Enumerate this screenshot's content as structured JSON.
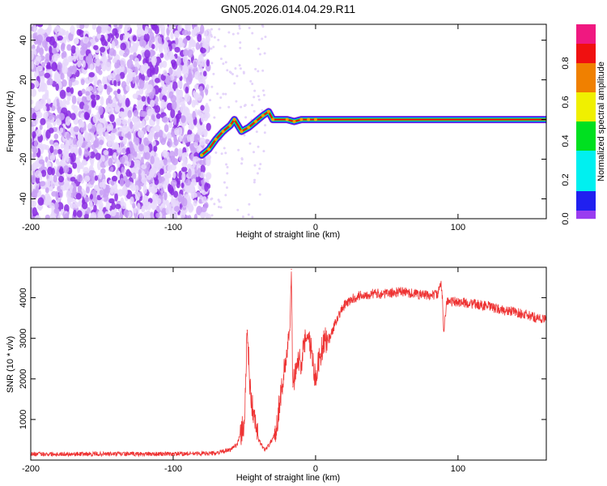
{
  "chart_data": [
    {
      "type": "heatmap",
      "title": "GN05.2026.014.04.29.R11",
      "xlabel": "Height of straight line (km)",
      "ylabel": "Frequency (Hz)",
      "xlim": [
        -200,
        162
      ],
      "ylim": [
        -50,
        48
      ],
      "xticks": [
        -200,
        -100,
        0,
        100
      ],
      "xtick_labels": [
        "-200",
        "-100",
        "0",
        "100"
      ],
      "yticks": [
        -40,
        -20,
        0,
        20,
        40
      ],
      "ytick_labels": [
        "-40",
        "-20",
        "0",
        "20",
        "40"
      ],
      "noise_region_km": [
        -200,
        -75
      ],
      "ridge": [
        [
          -80,
          -18
        ],
        [
          -75,
          -15
        ],
        [
          -70,
          -10
        ],
        [
          -65,
          -6
        ],
        [
          -60,
          -3
        ],
        [
          -57,
          0
        ],
        [
          -52,
          -6
        ],
        [
          -47,
          -4
        ],
        [
          -42,
          -1
        ],
        [
          -37,
          2
        ],
        [
          -33,
          4
        ],
        [
          -30,
          0
        ],
        [
          -20,
          0
        ],
        [
          -15,
          -1
        ],
        [
          -10,
          0
        ],
        [
          -5,
          0
        ],
        [
          0,
          0
        ],
        [
          162,
          0
        ]
      ],
      "colorbar": {
        "label": "Normalized spectral amplitude",
        "range": [
          0,
          1
        ],
        "ticks": [
          0.0,
          0.2,
          0.4,
          0.6,
          0.8
        ],
        "tick_labels": [
          "0.0",
          "0.2",
          "0.4",
          "0.6",
          "0.8"
        ]
      }
    },
    {
      "type": "line",
      "xlabel": "Height of straight line (km)",
      "ylabel": "SNR (10 * v/v)",
      "xlim": [
        -200,
        162
      ],
      "ylim": [
        0,
        4750
      ],
      "xticks": [
        -200,
        -100,
        0,
        100
      ],
      "xtick_labels": [
        "-200",
        "-100",
        "0",
        "100"
      ],
      "yticks": [
        1000,
        2000,
        3000,
        4000
      ],
      "ytick_labels": [
        "1000",
        "2000",
        "3000",
        "4000"
      ],
      "color": "#ee3333",
      "x": [
        -200,
        -150,
        -100,
        -70,
        -60,
        -55,
        -50,
        -48,
        -46,
        -44,
        -40,
        -36,
        -32,
        -28,
        -25,
        -22,
        -20,
        -18,
        -17,
        -16,
        -14,
        -12,
        -10,
        -7,
        -5,
        -3,
        0,
        3,
        5,
        8,
        10,
        12,
        15,
        20,
        25,
        30,
        40,
        50,
        60,
        70,
        80,
        86,
        88,
        89,
        90,
        92,
        100,
        110,
        120,
        130,
        140,
        150,
        162
      ],
      "y": [
        150,
        150,
        150,
        170,
        250,
        400,
        900,
        3200,
        1800,
        1200,
        500,
        250,
        400,
        700,
        1500,
        2200,
        2700,
        3200,
        4700,
        1800,
        2300,
        2500,
        2400,
        3000,
        3100,
        2700,
        2000,
        2600,
        2800,
        3000,
        3000,
        3200,
        3500,
        3800,
        3950,
        4050,
        4100,
        4100,
        4150,
        4100,
        4050,
        4100,
        4350,
        4000,
        3200,
        3900,
        3900,
        3850,
        3800,
        3700,
        3650,
        3550,
        3450
      ]
    }
  ]
}
